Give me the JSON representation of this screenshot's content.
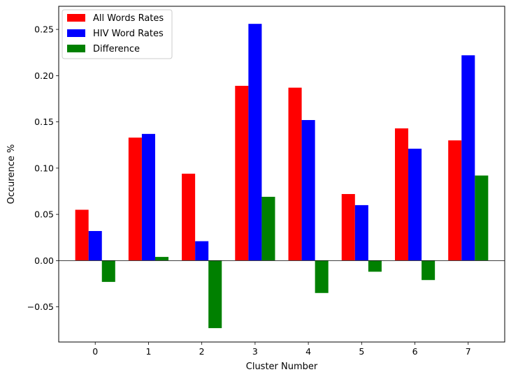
{
  "chart_data": {
    "type": "bar",
    "xlabel": "Cluster Number",
    "ylabel": "Occurence %",
    "categories": [
      "0",
      "1",
      "2",
      "3",
      "4",
      "5",
      "6",
      "7"
    ],
    "ylim": [
      -0.088,
      0.275
    ],
    "yticks": [
      -0.05,
      0.0,
      0.05,
      0.1,
      0.15,
      0.2,
      0.25
    ],
    "ytick_labels": [
      "−0.05",
      "0.00",
      "0.05",
      "0.10",
      "0.15",
      "0.20",
      "0.25"
    ],
    "zero_line": true,
    "grid": false,
    "legend_position": "top-left",
    "series": [
      {
        "name": "All Words Rates",
        "color": "#ff0000",
        "values": [
          0.055,
          0.133,
          0.094,
          0.189,
          0.187,
          0.072,
          0.143,
          0.13
        ]
      },
      {
        "name": "HIV Word Rates",
        "color": "#0000ff",
        "values": [
          0.032,
          0.137,
          0.021,
          0.256,
          0.152,
          0.06,
          0.121,
          0.222
        ]
      },
      {
        "name": "Difference",
        "color": "#008000",
        "values": [
          -0.023,
          0.004,
          -0.073,
          0.069,
          -0.035,
          -0.012,
          -0.021,
          0.092
        ]
      }
    ]
  }
}
